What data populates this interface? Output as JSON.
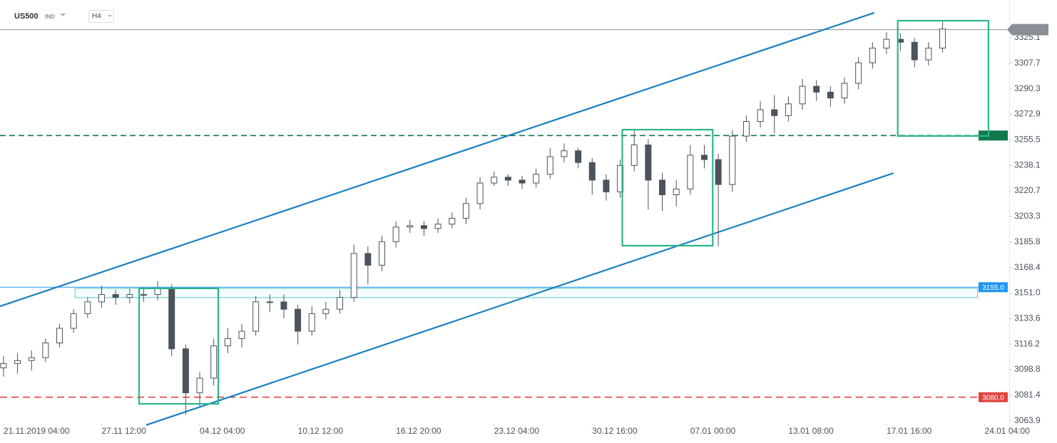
{
  "chart_data": {
    "type": "candlestick",
    "title": "US500",
    "subtitle": "IND",
    "timeframe": "H4",
    "x": [
      0,
      4,
      8,
      12,
      16,
      20,
      24,
      28,
      32,
      36,
      40,
      44,
      48,
      52,
      56,
      60,
      64,
      68,
      72,
      76,
      80,
      84,
      88,
      92,
      96,
      100,
      104,
      108,
      112,
      116,
      120,
      124,
      128,
      132,
      136,
      140,
      144,
      148,
      152,
      156,
      160,
      164,
      168,
      172,
      176,
      180,
      184,
      188,
      192,
      196,
      200,
      204,
      208,
      212,
      216,
      220,
      224,
      228,
      232,
      236,
      240,
      244,
      248,
      252,
      256,
      260,
      264,
      268
    ],
    "open": [
      3100,
      3103,
      3105,
      3107,
      3117,
      3127,
      3137,
      3145,
      3150,
      3148,
      3150,
      3150,
      3154,
      3113,
      3083,
      3093,
      3115,
      3120,
      3125,
      3145,
      3145,
      3140,
      3125,
      3137,
      3140,
      3148,
      3178,
      3170,
      3186,
      3196,
      3197,
      3195,
      3198,
      3202,
      3212,
      3226,
      3230,
      3228,
      3226,
      3232,
      3244,
      3248,
      3240,
      3228,
      3220,
      3238,
      3252,
      3228,
      3218,
      3222,
      3245,
      3242,
      3225,
      3258,
      3268,
      3276,
      3272,
      3280,
      3292,
      3288,
      3284,
      3294,
      3308,
      3318,
      3324,
      3322,
      3310,
      3318
    ],
    "high": [
      3108,
      3110,
      3112,
      3120,
      3130,
      3140,
      3148,
      3156,
      3153,
      3154,
      3155,
      3159,
      3157,
      3116,
      3097,
      3120,
      3127,
      3130,
      3149,
      3150,
      3150,
      3143,
      3142,
      3145,
      3153,
      3184,
      3183,
      3190,
      3200,
      3201,
      3200,
      3202,
      3206,
      3216,
      3230,
      3234,
      3232,
      3231,
      3236,
      3250,
      3253,
      3250,
      3243,
      3232,
      3242,
      3262,
      3256,
      3233,
      3228,
      3252,
      3252,
      3246,
      3262,
      3272,
      3282,
      3286,
      3285,
      3297,
      3296,
      3292,
      3298,
      3312,
      3322,
      3329,
      3328,
      3325,
      3322,
      3336
    ],
    "low": [
      3094,
      3096,
      3098,
      3104,
      3114,
      3124,
      3134,
      3141,
      3143,
      3144,
      3145,
      3146,
      3108,
      3068,
      3074,
      3088,
      3110,
      3114,
      3122,
      3138,
      3134,
      3116,
      3122,
      3133,
      3137,
      3145,
      3157,
      3166,
      3182,
      3192,
      3190,
      3192,
      3195,
      3198,
      3208,
      3224,
      3224,
      3222,
      3223,
      3229,
      3240,
      3236,
      3218,
      3214,
      3216,
      3234,
      3208,
      3207,
      3210,
      3218,
      3236,
      3183,
      3220,
      3254,
      3264,
      3260,
      3268,
      3276,
      3282,
      3278,
      3280,
      3290,
      3304,
      3314,
      3316,
      3305,
      3306,
      3315
    ],
    "close": [
      3103,
      3105,
      3107,
      3117,
      3127,
      3137,
      3145,
      3150,
      3148,
      3150,
      3150,
      3154,
      3113,
      3083,
      3093,
      3115,
      3120,
      3125,
      3145,
      3145,
      3140,
      3125,
      3137,
      3140,
      3148,
      3178,
      3170,
      3186,
      3196,
      3197,
      3195,
      3198,
      3202,
      3212,
      3226,
      3230,
      3228,
      3226,
      3232,
      3244,
      3248,
      3240,
      3228,
      3220,
      3238,
      3252,
      3228,
      3218,
      3222,
      3245,
      3242,
      3225,
      3258,
      3268,
      3276,
      3272,
      3280,
      3292,
      3288,
      3284,
      3294,
      3308,
      3318,
      3324,
      3322,
      3310,
      3318,
      3331
    ],
    "up_color": "#ffffff",
    "down_color": "#4b535c",
    "wick_color": "#4b535c",
    "xlim": [
      -1,
      286
    ],
    "ylim": [
      3061.9,
      3350.8
    ],
    "xticks": [
      {
        "value": 0,
        "label": "21.11.2019 04:00"
      },
      {
        "value": 28,
        "label": "27.11 12:00"
      },
      {
        "value": 56,
        "label": "04.12 04:00"
      },
      {
        "value": 84,
        "label": "10.12 12:00"
      },
      {
        "value": 112,
        "label": "16.12 20:00"
      },
      {
        "value": 140,
        "label": "23.12 04:00"
      },
      {
        "value": 168,
        "label": "30.12 16:00"
      },
      {
        "value": 196,
        "label": "07.01 00:00"
      },
      {
        "value": 224,
        "label": "13.01 08:00"
      },
      {
        "value": 252,
        "label": "17.01 16:00"
      },
      {
        "value": 280,
        "label": "24.01 04:00"
      }
    ],
    "yticks": [
      3063.9,
      3081.4,
      3098.8,
      3116.2,
      3133.6,
      {
        "value": 3151,
        "label": "3151.0"
      },
      3168.4,
      3185.8,
      3203.3,
      3220.7,
      3238.1,
      3255.5,
      3272.9,
      3290.3,
      3307.7,
      3325.1
    ],
    "levels": [
      {
        "value": 3330.6,
        "color": "#8a8f96",
        "dash": "none",
        "badge": "current"
      },
      {
        "value": 3258.4,
        "color": "#0f7a4c",
        "dash": "8 5",
        "badge": "box"
      },
      {
        "value": 3155,
        "label": "3155.0",
        "color": "#2196f3",
        "dash": "none",
        "badge": "box"
      },
      {
        "value": 3080,
        "label": "3080.0",
        "color": "#e0453f",
        "dash": "10 6",
        "badge": "box"
      }
    ],
    "zone": {
      "x": [
        20.4,
        278
      ],
      "y": [
        3147.9,
        3154.2
      ],
      "color": "#5bc8c8"
    },
    "trend_lines": [
      {
        "x": [
          -1,
          248.5
        ],
        "y": [
          3142.0,
          3342.1
        ],
        "color": "#1a7fc1"
      },
      {
        "x": [
          40.7,
          254
        ],
        "y": [
          3061.0,
          3232.8
        ],
        "color": "#1a7fc1"
      }
    ],
    "boxes": [
      {
        "x": [
          38.7,
          61.3
        ],
        "y": [
          3075.5,
          3154.2
        ],
        "color": "#2bb58b"
      },
      {
        "x": [
          176.6,
          202.4
        ],
        "y": [
          3183.3,
          3262.4
        ],
        "color": "#2bb58b"
      },
      {
        "x": [
          255.2,
          281.1
        ],
        "y": [
          3258.1,
          3336.7
        ],
        "color": "#2bb58b"
      }
    ]
  }
}
